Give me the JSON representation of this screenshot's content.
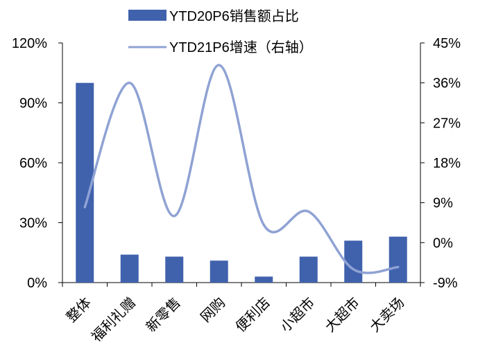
{
  "chart_data": {
    "type": "bar+line",
    "categories": [
      "整体",
      "福利礼赠",
      "新零售",
      "网购",
      "便利店",
      "小超市",
      "大超市",
      "大卖场"
    ],
    "series": [
      {
        "name": "YTD20P6销售额占比",
        "kind": "bar",
        "axis": "left",
        "values": [
          100,
          14,
          13,
          11,
          3,
          13,
          21,
          23
        ],
        "unit": "%",
        "color": "#4062ad"
      },
      {
        "name": "YTD21P6增速（右轴）",
        "kind": "line",
        "axis": "right",
        "smooth": true,
        "values": [
          8,
          36,
          6,
          40,
          4,
          7,
          -6,
          -5.5
        ],
        "unit": "%",
        "color": "#8fa2d4"
      }
    ],
    "left_axis": {
      "ylim": [
        0,
        120
      ],
      "ticks": [
        "0%",
        "30%",
        "60%",
        "90%",
        "120%"
      ],
      "tick_values": [
        0,
        30,
        60,
        90,
        120
      ]
    },
    "right_axis": {
      "ylim": [
        -9,
        45
      ],
      "ticks": [
        "-9%",
        "0%",
        "9%",
        "18%",
        "27%",
        "36%",
        "45%"
      ],
      "tick_values": [
        -9,
        0,
        9,
        18,
        27,
        36,
        45
      ]
    },
    "grid": false,
    "legend": "top-center"
  }
}
